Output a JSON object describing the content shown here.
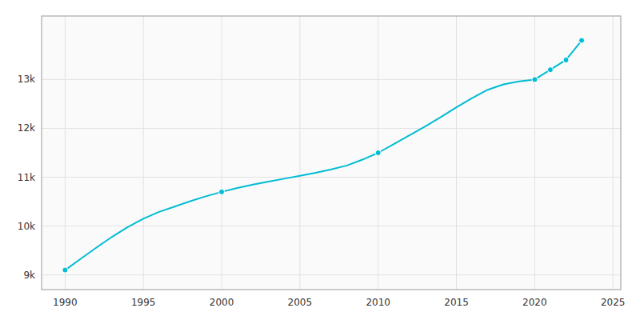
{
  "chart_data": {
    "type": "line",
    "x": [
      1990,
      1991,
      1992,
      1993,
      1994,
      1995,
      1996,
      1997,
      1998,
      1999,
      2000,
      2001,
      2002,
      2003,
      2004,
      2005,
      2006,
      2007,
      2008,
      2009,
      2010,
      2011,
      2012,
      2013,
      2014,
      2015,
      2016,
      2017,
      2018,
      2019,
      2020,
      2021,
      2022,
      2023
    ],
    "series": [
      {
        "type": "line",
        "color": "#00BCD4",
        "values": [
          9100,
          9330,
          9560,
          9780,
          9980,
          10150,
          10290,
          10400,
          10510,
          10610,
          10700,
          10780,
          10850,
          10910,
          10970,
          11030,
          11090,
          11160,
          11240,
          11360,
          11500,
          11680,
          11860,
          12040,
          12230,
          12430,
          12620,
          12790,
          12900,
          12960,
          13000,
          13200,
          13400,
          13800
        ]
      },
      {
        "type": "scatter",
        "color": "#00BCD4",
        "marker": "circle",
        "x": [
          1990,
          2000,
          2010,
          2020,
          2021,
          2022,
          2023
        ],
        "values": [
          9100,
          10700,
          11500,
          13000,
          13200,
          13400,
          13800
        ]
      }
    ],
    "xlim": [
      1988.5,
      2025.5
    ],
    "xticks": [
      1990,
      1995,
      2000,
      2005,
      2010,
      2015,
      2020,
      2025
    ],
    "ylim": [
      8700,
      14300
    ],
    "yticks": [
      {
        "value": 9000,
        "label": "9k"
      },
      {
        "value": 10000,
        "label": "10k"
      },
      {
        "value": 11000,
        "label": "11k"
      },
      {
        "value": 12000,
        "label": "12k"
      },
      {
        "value": 13000,
        "label": "13k"
      }
    ],
    "grid": true
  }
}
